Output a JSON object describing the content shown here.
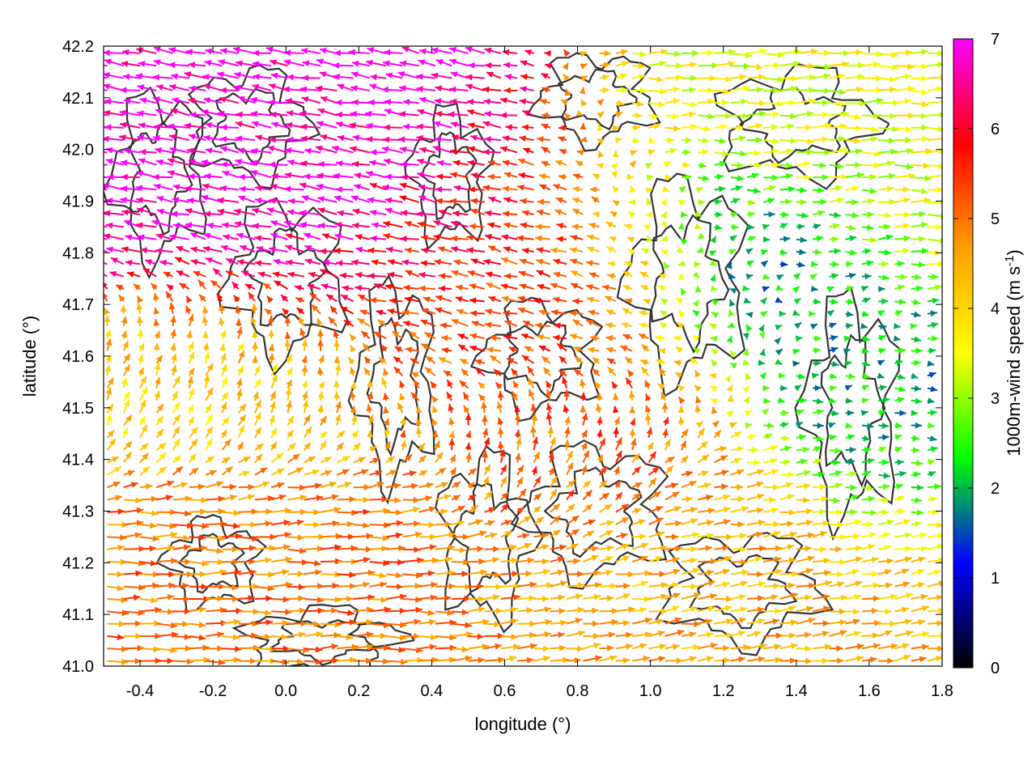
{
  "chart_data": {
    "type": "quiver",
    "xlabel": "longitude (°)",
    "ylabel": "latitude (°)",
    "colorbar_label": "1000m-wind speed (m s",
    "colorbar_label_exp": "-1",
    "colorbar_label_tail": ")",
    "xlim": [
      -0.5,
      1.8
    ],
    "ylim": [
      41.0,
      42.2
    ],
    "x_ticks": [
      "-0.4",
      "-0.2",
      "0.0",
      "0.2",
      "0.4",
      "0.6",
      "0.8",
      "1.0",
      "1.2",
      "1.4",
      "1.6",
      "1.8"
    ],
    "x_tick_values": [
      -0.4,
      -0.2,
      0.0,
      0.2,
      0.4,
      0.6,
      0.8,
      1.0,
      1.2,
      1.4,
      1.6,
      1.8
    ],
    "y_ticks": [
      "41.0",
      "41.1",
      "41.2",
      "41.3",
      "41.4",
      "41.5",
      "41.6",
      "41.7",
      "41.8",
      "41.9",
      "42.0",
      "42.1",
      "42.2"
    ],
    "y_tick_values": [
      41.0,
      41.1,
      41.2,
      41.3,
      41.4,
      41.5,
      41.6,
      41.7,
      41.8,
      41.9,
      42.0,
      42.1,
      42.2
    ],
    "colorbar_range": [
      0,
      7
    ],
    "colorbar_ticks": [
      "0",
      "1",
      "2",
      "3",
      "4",
      "5",
      "6",
      "7"
    ],
    "colorbar_tick_values": [
      0,
      1,
      2,
      3,
      4,
      5,
      6,
      7
    ],
    "colormap": [
      "#000000",
      "#0000ff",
      "#00ff00",
      "#ffff00",
      "#ffa000",
      "#ff0000",
      "#ff00ff"
    ],
    "grid": "dotted",
    "contour_color": "#333333",
    "wind_regions": [
      {
        "x": [
          -0.5,
          0.5
        ],
        "y": [
          41.7,
          42.2
        ],
        "u": -2.6,
        "v": 0.45,
        "speed": 7.0
      },
      {
        "x": [
          -0.5,
          0.2
        ],
        "y": [
          41.45,
          41.7
        ],
        "u": 0.8,
        "v": 1.5,
        "speed": 4.0
      },
      {
        "x": [
          0.2,
          1.2
        ],
        "y": [
          41.55,
          41.95
        ],
        "u": -2.0,
        "v": 0.45,
        "speed": 5.3
      },
      {
        "x": [
          -0.5,
          0.6
        ],
        "y": [
          41.0,
          41.3
        ],
        "u": 2.6,
        "v": 0.05,
        "speed": 5.0
      },
      {
        "x": [
          0.6,
          1.8
        ],
        "y": [
          41.0,
          41.35
        ],
        "u": 2.3,
        "v": 0.35,
        "speed": 4.5
      },
      {
        "x": [
          1.0,
          1.8
        ],
        "y": [
          41.8,
          42.2
        ],
        "u": 2.6,
        "v": 0.05,
        "speed": 3.5
      },
      {
        "x": [
          1.0,
          1.5
        ],
        "y": [
          41.65,
          41.95
        ],
        "u": 0.6,
        "v": 0.1,
        "speed": 1.0
      },
      {
        "x": [
          1.4,
          1.8
        ],
        "y": [
          41.3,
          41.65
        ],
        "u": 1.2,
        "v": 0.05,
        "speed": 2.0
      },
      {
        "x": [
          0.5,
          1.0
        ],
        "y": [
          41.3,
          41.55
        ],
        "u": 0.3,
        "v": 1.6,
        "speed": 5.2
      }
    ]
  }
}
